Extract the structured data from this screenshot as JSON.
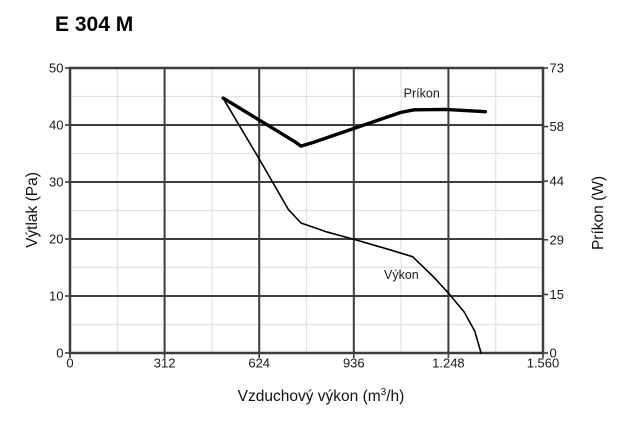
{
  "title": "E 304 M",
  "chart_data": {
    "type": "line",
    "title": "E 304 M",
    "xlabel": "Vzduchový výkon (m³/h)",
    "xlabel_parts": {
      "base": "Vzduchový výkon (m",
      "sup": "3",
      "tail": "/h)"
    },
    "ylabel_left": "Výtlak (Pa)",
    "ylabel_right": "Príkon (W)",
    "xlim": [
      0,
      1560
    ],
    "ylim_left": [
      0,
      50
    ],
    "ylim_right": [
      0,
      73
    ],
    "x_ticks": [
      {
        "value": 0,
        "label": "0"
      },
      {
        "value": 312,
        "label": "312"
      },
      {
        "value": 624,
        "label": "624"
      },
      {
        "value": 936,
        "label": "936"
      },
      {
        "value": 1248,
        "label": "1.248"
      },
      {
        "value": 1560,
        "label": "1.560"
      }
    ],
    "y_left_ticks": [
      {
        "value": 0,
        "label": "0"
      },
      {
        "value": 10,
        "label": "10"
      },
      {
        "value": 20,
        "label": "20"
      },
      {
        "value": 30,
        "label": "30"
      },
      {
        "value": 40,
        "label": "40"
      },
      {
        "value": 50,
        "label": "50"
      }
    ],
    "y_right_ticks": [
      {
        "value": 0,
        "label": "0"
      },
      {
        "value": 15,
        "label": "15"
      },
      {
        "value": 29,
        "label": "29"
      },
      {
        "value": 44,
        "label": "44"
      },
      {
        "value": 58,
        "label": "58"
      },
      {
        "value": 73,
        "label": "73"
      }
    ],
    "grid": {
      "major": true,
      "minor": true,
      "x_minor_step": 156,
      "x_major_step": 312,
      "y_minor_step": 5,
      "y_major_step": 10
    },
    "colors": {
      "curve": "#000000",
      "major_grid": "#3d3d3d",
      "minor_grid": "#e2e2e2",
      "text": "#1a1a1a"
    },
    "series": [
      {
        "name": "Príkon",
        "axis": "right",
        "unit": "W",
        "line_width": 3.4,
        "label_pos": {
          "x": 1160,
          "y": 66.6
        },
        "points": [
          [
            505,
            65.3
          ],
          [
            740,
            54.2
          ],
          [
            762,
            53.0
          ],
          [
            800,
            53.9
          ],
          [
            1090,
            61.6
          ],
          [
            1135,
            62.3
          ],
          [
            1240,
            62.4
          ],
          [
            1370,
            61.8
          ]
        ]
      },
      {
        "name": "Výkon",
        "axis": "left",
        "unit": "Pa",
        "line_width": 1.6,
        "label_pos": {
          "x": 1093,
          "y": 13.8
        },
        "points": [
          [
            505,
            44.7
          ],
          [
            630,
            33.5
          ],
          [
            720,
            25.2
          ],
          [
            762,
            22.8
          ],
          [
            850,
            21.2
          ],
          [
            940,
            19.9
          ],
          [
            1055,
            18.1
          ],
          [
            1130,
            16.9
          ],
          [
            1200,
            13.3
          ],
          [
            1248,
            10.5
          ],
          [
            1300,
            7.2
          ],
          [
            1335,
            3.8
          ],
          [
            1356,
            0
          ]
        ]
      }
    ]
  }
}
